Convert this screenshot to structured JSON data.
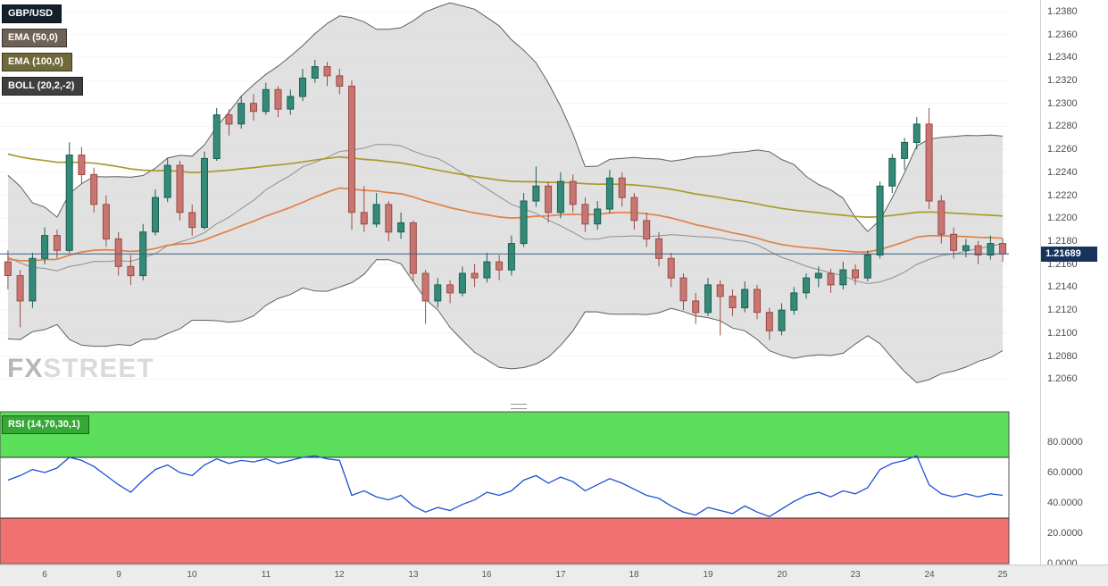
{
  "chart": {
    "legend": [
      {
        "label": "GBP/USD",
        "bg": "#141f2c"
      },
      {
        "label": "EMA (50,0)",
        "bg": "#6e6156"
      },
      {
        "label": "EMA (100,0)",
        "bg": "#6f6a3a"
      },
      {
        "label": "BOLL (20,2,-2)",
        "bg": "#3f3f3f"
      }
    ]
  },
  "watermark": {
    "fx": "FX",
    "street": "STREET"
  },
  "colors": {
    "bull_fill": "#348a78",
    "bull_stroke": "#1c5e50",
    "bear_fill": "#c77672",
    "bear_stroke": "#9c4a45",
    "band_fill": "#d9d9d9",
    "band_stroke": "#5f5f5f",
    "band_mid": "#8f8f8f",
    "ema50": "#e08147",
    "ema100": "#a89b2d",
    "price_line": "#3f5e7e",
    "price_badge_bg": "#16335c",
    "rsi_line": "#1e4fd6",
    "rsi_overbought_fill": "#5ce05c",
    "rsi_oversold_fill": "#f17070",
    "zone_border": "#2a2a2a",
    "rsi_chip_bg": "#35a835",
    "rsi_chip_border": "#156615",
    "grid": "#f4f4f4"
  },
  "chart_data": {
    "type": "candlestick",
    "pair": "GBP/USD",
    "current_price": "1.21689",
    "current_price_value": 1.21689,
    "price_axis": {
      "max": 1.239,
      "min": 1.204,
      "ticks": [
        "1.2380",
        "1.2360",
        "1.2340",
        "1.2320",
        "1.2300",
        "1.2280",
        "1.2260",
        "1.2240",
        "1.2220",
        "1.2200",
        "1.2180",
        "1.2160",
        "1.2140",
        "1.2120",
        "1.2100",
        "1.2080",
        "1.2060"
      ]
    },
    "x_axis": {
      "labels": [
        "6",
        "9",
        "10",
        "11",
        "12",
        "13",
        "16",
        "17",
        "18",
        "19",
        "20",
        "23",
        "24",
        "25"
      ],
      "day_start_indices": [
        0,
        6,
        12,
        18,
        24,
        30,
        36,
        42,
        48,
        54,
        60,
        66,
        72,
        78
      ]
    },
    "candles": [
      [
        1.2162,
        1.2172,
        1.2138,
        1.215
      ],
      [
        1.215,
        1.2155,
        1.2105,
        1.2128
      ],
      [
        1.2128,
        1.217,
        1.2122,
        1.2165
      ],
      [
        1.2165,
        1.2192,
        1.216,
        1.2185
      ],
      [
        1.2185,
        1.219,
        1.2165,
        1.2172
      ],
      [
        1.2172,
        1.2266,
        1.217,
        1.2255
      ],
      [
        1.2255,
        1.2262,
        1.223,
        1.2238
      ],
      [
        1.2238,
        1.2244,
        1.2205,
        1.2212
      ],
      [
        1.2212,
        1.222,
        1.2175,
        1.2182
      ],
      [
        1.2182,
        1.2188,
        1.215,
        1.2158
      ],
      [
        1.2158,
        1.2168,
        1.2142,
        1.215
      ],
      [
        1.215,
        1.2195,
        1.2146,
        1.2188
      ],
      [
        1.2188,
        1.2225,
        1.2185,
        1.2218
      ],
      [
        1.2218,
        1.2252,
        1.2214,
        1.2246
      ],
      [
        1.2246,
        1.225,
        1.2198,
        1.2205
      ],
      [
        1.2205,
        1.2212,
        1.2185,
        1.2192
      ],
      [
        1.2192,
        1.2258,
        1.219,
        1.2252
      ],
      [
        1.2252,
        1.2296,
        1.225,
        1.229
      ],
      [
        1.229,
        1.2295,
        1.2272,
        1.2282
      ],
      [
        1.2282,
        1.2306,
        1.2278,
        1.23
      ],
      [
        1.23,
        1.2308,
        1.2285,
        1.2293
      ],
      [
        1.2293,
        1.2318,
        1.229,
        1.2312
      ],
      [
        1.2312,
        1.2315,
        1.2288,
        1.2295
      ],
      [
        1.2295,
        1.2312,
        1.229,
        1.2306
      ],
      [
        1.2306,
        1.233,
        1.2302,
        1.2322
      ],
      [
        1.2322,
        1.2338,
        1.2318,
        1.2332
      ],
      [
        1.2332,
        1.2336,
        1.2315,
        1.2324
      ],
      [
        1.2324,
        1.233,
        1.2308,
        1.2315
      ],
      [
        1.2315,
        1.232,
        1.219,
        1.2205
      ],
      [
        1.2205,
        1.2228,
        1.2188,
        1.2195
      ],
      [
        1.2195,
        1.2222,
        1.2192,
        1.2212
      ],
      [
        1.2212,
        1.2215,
        1.218,
        1.2188
      ],
      [
        1.2188,
        1.2205,
        1.2182,
        1.2196
      ],
      [
        1.2196,
        1.2198,
        1.2145,
        1.2152
      ],
      [
        1.2152,
        1.2155,
        1.2108,
        1.2128
      ],
      [
        1.2128,
        1.2148,
        1.2122,
        1.2142
      ],
      [
        1.2142,
        1.2146,
        1.2126,
        1.2135
      ],
      [
        1.2135,
        1.2158,
        1.2132,
        1.2152
      ],
      [
        1.2152,
        1.216,
        1.214,
        1.2148
      ],
      [
        1.2148,
        1.217,
        1.2144,
        1.2162
      ],
      [
        1.2162,
        1.2168,
        1.2146,
        1.2155
      ],
      [
        1.2155,
        1.2185,
        1.215,
        1.2178
      ],
      [
        1.2178,
        1.2222,
        1.2175,
        1.2215
      ],
      [
        1.2215,
        1.2245,
        1.221,
        1.2228
      ],
      [
        1.2228,
        1.2232,
        1.2196,
        1.2205
      ],
      [
        1.2205,
        1.224,
        1.22,
        1.2232
      ],
      [
        1.2232,
        1.2238,
        1.2205,
        1.2212
      ],
      [
        1.2212,
        1.2218,
        1.2188,
        1.2195
      ],
      [
        1.2195,
        1.2215,
        1.219,
        1.2208
      ],
      [
        1.2208,
        1.2242,
        1.2204,
        1.2235
      ],
      [
        1.2235,
        1.224,
        1.221,
        1.2218
      ],
      [
        1.2218,
        1.2222,
        1.219,
        1.2198
      ],
      [
        1.2198,
        1.2205,
        1.2175,
        1.2182
      ],
      [
        1.2182,
        1.2188,
        1.2158,
        1.2165
      ],
      [
        1.2165,
        1.217,
        1.214,
        1.2148
      ],
      [
        1.2148,
        1.2152,
        1.212,
        1.2128
      ],
      [
        1.2128,
        1.2135,
        1.2108,
        1.2118
      ],
      [
        1.2118,
        1.2148,
        1.2115,
        1.2142
      ],
      [
        1.2142,
        1.2146,
        1.2098,
        1.2132
      ],
      [
        1.2132,
        1.2138,
        1.2115,
        1.2122
      ],
      [
        1.2122,
        1.2145,
        1.2118,
        1.2138
      ],
      [
        1.2138,
        1.2142,
        1.2112,
        1.2118
      ],
      [
        1.2118,
        1.2122,
        1.2094,
        1.2102
      ],
      [
        1.2102,
        1.2126,
        1.2098,
        1.212
      ],
      [
        1.212,
        1.214,
        1.2116,
        1.2135
      ],
      [
        1.2135,
        1.2152,
        1.213,
        1.2148
      ],
      [
        1.2148,
        1.2158,
        1.214,
        1.2152
      ],
      [
        1.2152,
        1.2156,
        1.2135,
        1.2142
      ],
      [
        1.2142,
        1.2162,
        1.2138,
        1.2155
      ],
      [
        1.2155,
        1.216,
        1.2142,
        1.2148
      ],
      [
        1.2148,
        1.2172,
        1.2145,
        1.2168
      ],
      [
        1.2168,
        1.2232,
        1.2165,
        1.2228
      ],
      [
        1.2228,
        1.2256,
        1.2222,
        1.2252
      ],
      [
        1.2252,
        1.227,
        1.2242,
        1.2266
      ],
      [
        1.2266,
        1.2288,
        1.226,
        1.2282
      ],
      [
        1.2282,
        1.2296,
        1.2208,
        1.2215
      ],
      [
        1.2215,
        1.222,
        1.2178,
        1.2186
      ],
      [
        1.2186,
        1.2192,
        1.2165,
        1.2172
      ],
      [
        1.2172,
        1.2182,
        1.2166,
        1.2176
      ],
      [
        1.2176,
        1.218,
        1.216,
        1.2168
      ],
      [
        1.2168,
        1.2185,
        1.2164,
        1.2178
      ],
      [
        1.2178,
        1.2182,
        1.2162,
        1.2169
      ]
    ],
    "indicators": {
      "ema50_seed": 1.2165,
      "ema100_seed": 1.2258,
      "boll_period": 20,
      "boll_dev": 2,
      "warmup_closes": [
        1.2255,
        1.223,
        1.224,
        1.2205,
        1.2215,
        1.218,
        1.22,
        1.216,
        1.2185,
        1.214,
        1.2165,
        1.212,
        1.215,
        1.211,
        1.214,
        1.2125,
        1.2155,
        1.2135,
        1.2168,
        1.215
      ]
    },
    "rsi": {
      "label": "RSI (14,70,30,1)",
      "overbought": 70,
      "oversold": 30,
      "ticks": [
        {
          "v": 80,
          "t": "80.0000"
        },
        {
          "v": 60,
          "t": "60.0000"
        },
        {
          "v": 40,
          "t": "40.0000"
        },
        {
          "v": 20,
          "t": "20.0000"
        },
        {
          "v": 0,
          "t": "0.0000"
        }
      ],
      "values": [
        55,
        58,
        62,
        60,
        63,
        70,
        68,
        64,
        58,
        52,
        47,
        55,
        62,
        65,
        60,
        58,
        65,
        69,
        66,
        68,
        67,
        69,
        66,
        68,
        70,
        71,
        69,
        68,
        45,
        48,
        44,
        42,
        45,
        38,
        34,
        37,
        35,
        39,
        42,
        47,
        45,
        48,
        55,
        58,
        53,
        57,
        54,
        48,
        52,
        56,
        53,
        49,
        45,
        43,
        38,
        34,
        32,
        37,
        35,
        33,
        38,
        34,
        31,
        36,
        41,
        45,
        47,
        44,
        48,
        46,
        50,
        62,
        66,
        68,
        71,
        52,
        46,
        44,
        46,
        44,
        46,
        45
      ]
    }
  }
}
